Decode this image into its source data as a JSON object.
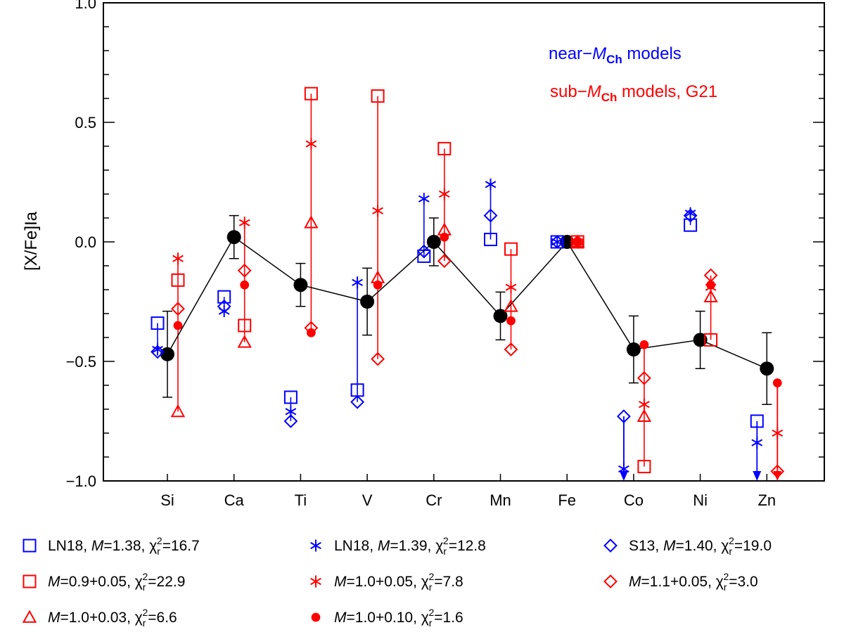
{
  "chart_data": {
    "type": "scatter",
    "ylabel": "[X/Fe]Ia",
    "ylim": [
      -1.0,
      1.0
    ],
    "yticks": [
      {
        "value": 1.0,
        "label": "1.0"
      },
      {
        "value": 0.5,
        "label": "0.5"
      },
      {
        "value": 0.0,
        "label": "0.0"
      },
      {
        "value": -0.5,
        "label": "−0.5"
      },
      {
        "value": -1.0,
        "label": "−1.0"
      }
    ],
    "categories": [
      "Si",
      "Ca",
      "Ti",
      "V",
      "Cr",
      "Mn",
      "Fe",
      "Co",
      "Ni",
      "Zn"
    ],
    "annotations": {
      "near": {
        "prefix": "near−",
        "sym": "M",
        "sub": "Ch",
        "suffix": " models",
        "color": "#0000ff"
      },
      "sub": {
        "prefix": "sub−",
        "sym": "M",
        "sub": "Ch",
        "suffix": " models, G21",
        "color": "#ff0000"
      }
    },
    "observed": {
      "name": "observed",
      "color": "#000000",
      "values": [
        -0.47,
        0.02,
        -0.18,
        -0.25,
        0.0,
        -0.31,
        0.0,
        -0.45,
        -0.41,
        -0.53
      ],
      "err_up": [
        0.18,
        0.09,
        0.09,
        0.14,
        0.1,
        0.1,
        0.0,
        0.14,
        0.12,
        0.15
      ],
      "err_down": [
        0.18,
        0.09,
        0.09,
        0.14,
        0.1,
        0.1,
        0.0,
        0.14,
        0.12,
        0.15
      ]
    },
    "series": [
      {
        "name": "LN18, M=1.38, χr²=16.7",
        "group": "near",
        "marker": "square",
        "color": "#0000ff",
        "legend": {
          "pre": "LN18, ",
          "mass": "1.38",
          "chi": "16.7"
        },
        "values": [
          -0.34,
          -0.23,
          -0.65,
          -0.62,
          -0.06,
          0.01,
          0.0,
          null,
          0.07,
          -0.75
        ]
      },
      {
        "name": "LN18, M=1.39, χr²=12.8",
        "group": "near",
        "marker": "asterisk",
        "color": "#0000ff",
        "legend": {
          "pre": "LN18, ",
          "mass": "1.39",
          "chi": "12.8"
        },
        "values": [
          -0.45,
          -0.29,
          -0.71,
          -0.17,
          0.18,
          0.24,
          0.0,
          -0.95,
          0.12,
          -0.84
        ]
      },
      {
        "name": "S13, M=1.40, χr²=19.0",
        "group": "near",
        "marker": "diamond",
        "color": "#0000ff",
        "legend": {
          "pre": "S13, ",
          "mass": "1.40",
          "chi": "19.0"
        },
        "values": [
          -0.46,
          -0.27,
          -0.75,
          -0.67,
          -0.04,
          0.11,
          0.0,
          -0.73,
          0.11,
          null
        ]
      },
      {
        "name": "M=0.9+0.05, χr²=22.9",
        "group": "sub",
        "marker": "square",
        "color": "#ff0000",
        "legend": {
          "pre": "",
          "mass": "0.9+0.05",
          "chi": "22.9"
        },
        "values": [
          -0.16,
          -0.35,
          0.62,
          0.61,
          0.39,
          -0.03,
          0.0,
          -0.94,
          -0.41,
          null
        ]
      },
      {
        "name": "M=1.0+0.05, χr²=7.8",
        "group": "sub",
        "marker": "asterisk",
        "color": "#ff0000",
        "legend": {
          "pre": "",
          "mass": "1.0+0.05",
          "chi": "7.8"
        },
        "values": [
          -0.07,
          0.08,
          0.41,
          0.13,
          0.2,
          -0.19,
          0.0,
          -0.68,
          -0.19,
          -0.8
        ]
      },
      {
        "name": "M=1.1+0.05, χr²=3.0",
        "group": "sub",
        "marker": "diamond",
        "color": "#ff0000",
        "legend": {
          "pre": "",
          "mass": "1.1+0.05",
          "chi": "3.0"
        },
        "values": [
          -0.28,
          -0.12,
          -0.36,
          -0.49,
          -0.08,
          -0.45,
          0.0,
          -0.57,
          -0.14,
          -0.96
        ]
      },
      {
        "name": "M=1.0+0.03, χr²=6.6",
        "group": "sub",
        "marker": "triangle",
        "color": "#ff0000",
        "legend": {
          "pre": "",
          "mass": "1.0+0.03",
          "chi": "6.6"
        },
        "values": [
          -0.71,
          -0.42,
          0.08,
          -0.15,
          0.05,
          -0.27,
          0.0,
          -0.73,
          -0.23,
          null
        ]
      },
      {
        "name": "M=1.0+0.10, χr²=1.6",
        "group": "sub",
        "marker": "filled-circle",
        "color": "#ff0000",
        "legend": {
          "pre": "",
          "mass": "1.0+0.10",
          "chi": "1.6"
        },
        "values": [
          -0.35,
          -0.18,
          -0.38,
          -0.18,
          0.02,
          -0.33,
          0.0,
          -0.43,
          -0.18,
          -0.59
        ]
      }
    ],
    "upper_limits": [
      {
        "group": "near",
        "category": "Co",
        "from": -0.73
      },
      {
        "group": "near",
        "category": "Zn",
        "from": -0.75
      },
      {
        "group": "sub",
        "category": "Zn",
        "from": -0.59
      }
    ],
    "legend_layout": "three columns below plot",
    "legend_order": [
      0,
      1,
      2,
      3,
      4,
      5,
      6,
      7
    ]
  }
}
